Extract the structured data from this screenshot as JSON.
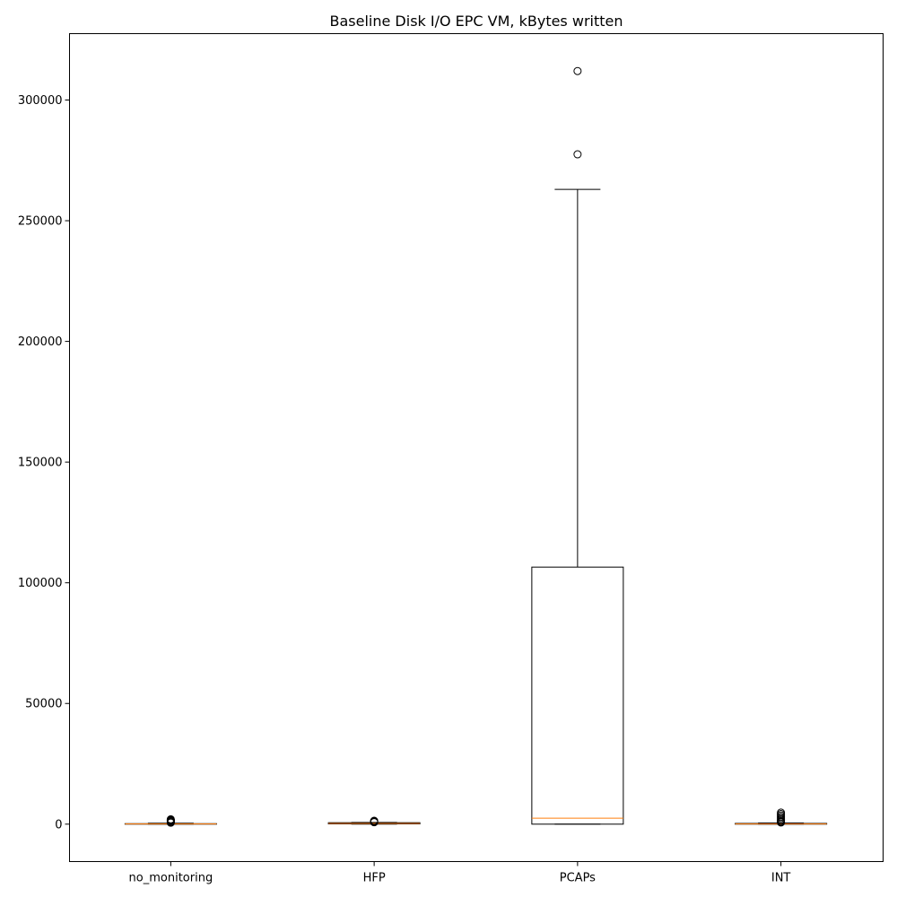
{
  "chart_data": {
    "type": "boxplot",
    "title": "Baseline Disk I/O EPC VM, kBytes written",
    "xlabel": "",
    "ylabel": "",
    "ylim": [
      -15500,
      327500
    ],
    "yticks": [
      0,
      50000,
      100000,
      150000,
      200000,
      250000,
      300000
    ],
    "ytick_labels": [
      "0",
      "50000",
      "100000",
      "150000",
      "200000",
      "250000",
      "300000"
    ],
    "grid": false,
    "colors": {
      "box": "#000000",
      "median": "#ff7f0e",
      "whisker": "#000000"
    },
    "boxes": [
      {
        "label": "no_monitoring",
        "whisker_low": 0,
        "q1": 0,
        "median": 100,
        "q3": 200,
        "whisker_high": 400,
        "outliers": [
          600,
          900,
          1200,
          1500,
          1800,
          2000
        ]
      },
      {
        "label": "HFP",
        "whisker_low": 0,
        "q1": 100,
        "median": 300,
        "q3": 600,
        "whisker_high": 700,
        "outliers": [
          800,
          1000,
          1200,
          1400
        ]
      },
      {
        "label": "PCAPs",
        "whisker_low": 0,
        "q1": 0,
        "median": 2500,
        "q3": 106500,
        "whisker_high": 263000,
        "outliers": [
          277500,
          312000
        ]
      },
      {
        "label": "INT",
        "whisker_low": 0,
        "q1": 0,
        "median": 100,
        "q3": 300,
        "whisker_high": 500,
        "outliers": [
          700,
          1000,
          1400,
          1900,
          2500,
          3000,
          3600,
          4200,
          4800
        ]
      }
    ]
  }
}
